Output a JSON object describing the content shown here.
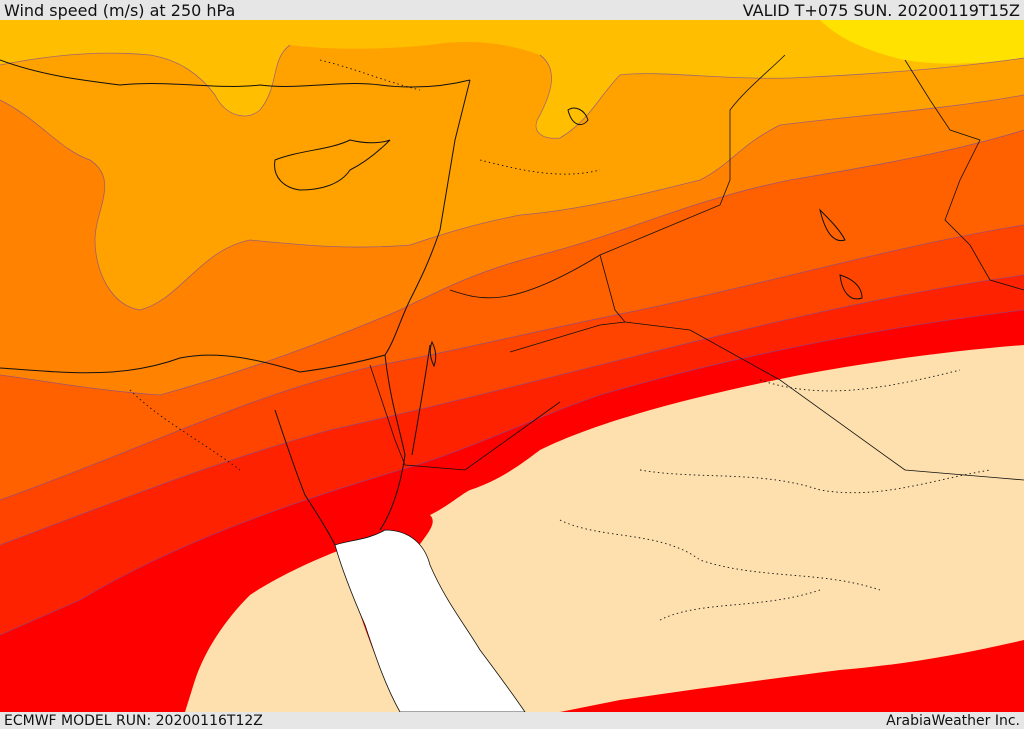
{
  "header": {
    "title": "Wind speed (m/s) at 250 hPa",
    "valid": "VALID T+075 SUN. 20200119T15Z"
  },
  "footer": {
    "model_run": "ECMWF MODEL RUN: 20200116T12Z",
    "credit": "ArabiaWeather Inc."
  },
  "map": {
    "colors": {
      "band_yellow": "#ffe200",
      "band_gold": "#ffbe00",
      "band_light_orange": "#ffa200",
      "band_orange": "#ff8200",
      "band_dark_orange": "#ff6000",
      "band_red_orange": "#ff4400",
      "band_orange_red": "#ff2200",
      "band_red": "#ff0000",
      "low_wind_fill": "#fde0ad",
      "sea_mask": "#ffffff",
      "coastline": "#111111",
      "contour_line": "#7a4aa0"
    }
  }
}
